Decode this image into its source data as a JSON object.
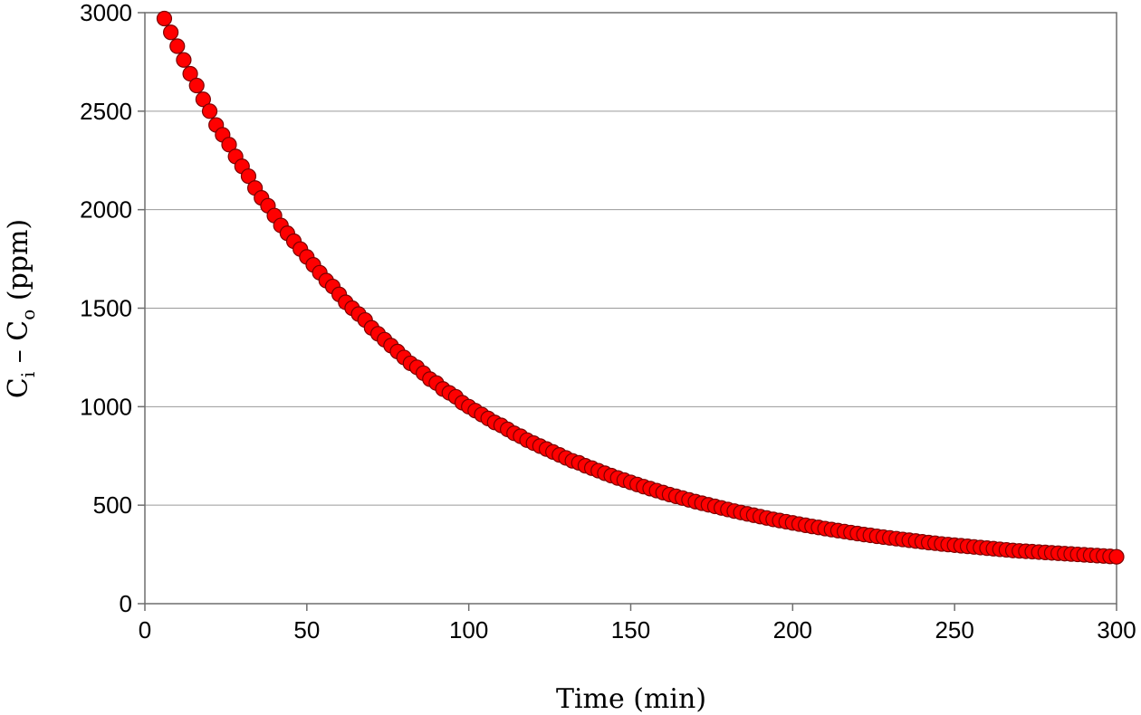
{
  "chart_data": {
    "type": "scatter",
    "title": "",
    "xlabel": "Time (min)",
    "ylabel_parts": {
      "c1": "C",
      "sub1": "i",
      "minus": " – ",
      "c2": "C",
      "sub2": "o",
      "unit": " (ppm)"
    },
    "xlim": [
      0,
      300
    ],
    "ylim": [
      0,
      3000
    ],
    "xticks": [
      "0",
      "50",
      "100",
      "150",
      "200",
      "250",
      "300"
    ],
    "yticks": [
      "0",
      "500",
      "1000",
      "1500",
      "2000",
      "2500",
      "3000"
    ],
    "grid": {
      "horizontal": true,
      "vertical": false
    },
    "marker_color": "#ff0000",
    "marker_edge_color": "#7a0000",
    "series": [
      {
        "x": [
          6,
          8,
          10,
          12,
          14,
          16,
          18,
          20,
          22,
          24,
          26,
          28,
          30,
          32,
          34,
          36,
          38,
          40,
          42,
          44,
          46,
          48,
          50,
          52,
          54,
          56,
          58,
          60,
          62,
          64,
          66,
          68,
          70,
          72,
          74,
          76,
          78,
          80,
          82,
          84,
          86,
          88,
          90,
          92,
          94,
          96,
          98,
          100,
          102,
          104,
          106,
          108,
          110,
          112,
          114,
          116,
          118,
          120,
          122,
          124,
          126,
          128,
          130,
          132,
          134,
          136,
          138,
          140,
          142,
          144,
          146,
          148,
          150,
          152,
          154,
          156,
          158,
          160,
          162,
          164,
          166,
          168,
          170,
          172,
          174,
          176,
          178,
          180,
          182,
          184,
          186,
          188,
          190,
          192,
          194,
          196,
          198,
          200,
          202,
          204,
          206,
          208,
          210,
          212,
          214,
          216,
          218,
          220,
          222,
          224,
          226,
          228,
          230,
          232,
          234,
          236,
          238,
          240,
          242,
          244,
          246,
          248,
          250,
          252,
          254,
          256,
          258,
          260,
          262,
          264,
          266,
          268,
          270,
          272,
          274,
          276,
          278,
          280,
          282,
          284,
          286,
          288,
          290,
          292,
          294,
          296,
          298,
          300
        ],
        "y": [
          2970,
          2900,
          2830,
          2760,
          2690,
          2630,
          2560,
          2500,
          2430,
          2380,
          2330,
          2270,
          2220,
          2170,
          2110,
          2060,
          2020,
          1970,
          1920,
          1880,
          1840,
          1800,
          1760,
          1720,
          1680,
          1640,
          1610,
          1570,
          1530,
          1500,
          1470,
          1440,
          1400,
          1370,
          1340,
          1310,
          1280,
          1250,
          1220,
          1200,
          1170,
          1140,
          1120,
          1090,
          1070,
          1050,
          1020,
          1000,
          980,
          960,
          940,
          920,
          905,
          885,
          865,
          850,
          830,
          815,
          800,
          785,
          770,
          755,
          740,
          725,
          715,
          700,
          688,
          675,
          662,
          650,
          638,
          627,
          616,
          605,
          594,
          584,
          574,
          564,
          554,
          545,
          536,
          527,
          518,
          510,
          502,
          494,
          486,
          478,
          470,
          463,
          456,
          449,
          442,
          435,
          428,
          422,
          416,
          410,
          404,
          398,
          392,
          387,
          381,
          376,
          371,
          366,
          361,
          356,
          351,
          347,
          342,
          338,
          334,
          330,
          326,
          322,
          318,
          314,
          310,
          307,
          303,
          300,
          297,
          294,
          291,
          288,
          285,
          282,
          279,
          276,
          273,
          270,
          268,
          266,
          264,
          262,
          260,
          258,
          256,
          254,
          252,
          250,
          248,
          246,
          244,
          242,
          240,
          238
        ]
      }
    ]
  }
}
